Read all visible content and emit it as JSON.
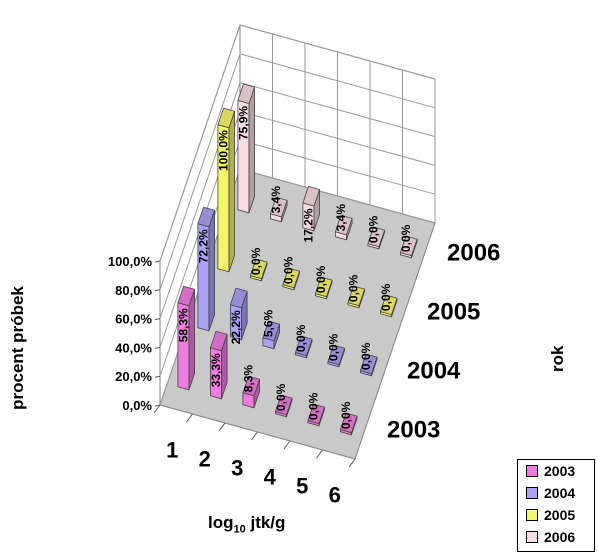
{
  "chart_data": {
    "type": "bar",
    "xlabel_main": "log",
    "xlabel_sub": "10",
    "xlabel_rest": " jtk/g",
    "ylabel": "procent próbek",
    "zlabel": "rok",
    "categories": [
      "1",
      "2",
      "3",
      "4",
      "5",
      "6"
    ],
    "yticks": [
      "0,0%",
      "20,0%",
      "40,0%",
      "60,0%",
      "80,0%",
      "100,0%"
    ],
    "ylim": [
      0,
      100
    ],
    "series": [
      {
        "name": "2003",
        "color": "#f07ce0",
        "values": [
          58.3,
          33.3,
          8.3,
          0,
          0,
          0
        ],
        "labels": [
          "58,3%",
          "33,3%",
          "8,3%",
          "0,0%",
          "0,0%",
          "0,0%"
        ]
      },
      {
        "name": "2004",
        "color": "#a9a2f5",
        "values": [
          72.2,
          22.2,
          5.6,
          0,
          0,
          0
        ],
        "labels": [
          "72,2%",
          "22,2%",
          "5,6%",
          "0,0%",
          "0,0%",
          "0,0%"
        ]
      },
      {
        "name": "2005",
        "color": "#f5f56a",
        "values": [
          100,
          0,
          0,
          0,
          0,
          0
        ],
        "labels": [
          "100,0%",
          "0,0%",
          "0,0%",
          "0,0%",
          "0,0%",
          "0,0%"
        ]
      },
      {
        "name": "2006",
        "color": "#f7dde3",
        "values": [
          75.9,
          3.4,
          17.2,
          3.4,
          0,
          0
        ],
        "labels": [
          "75,9%",
          "3,4%",
          "17,2%",
          "3,4%",
          "0,0%",
          "0,0%"
        ]
      }
    ],
    "legend_position": "bottom-right",
    "grid": true
  }
}
